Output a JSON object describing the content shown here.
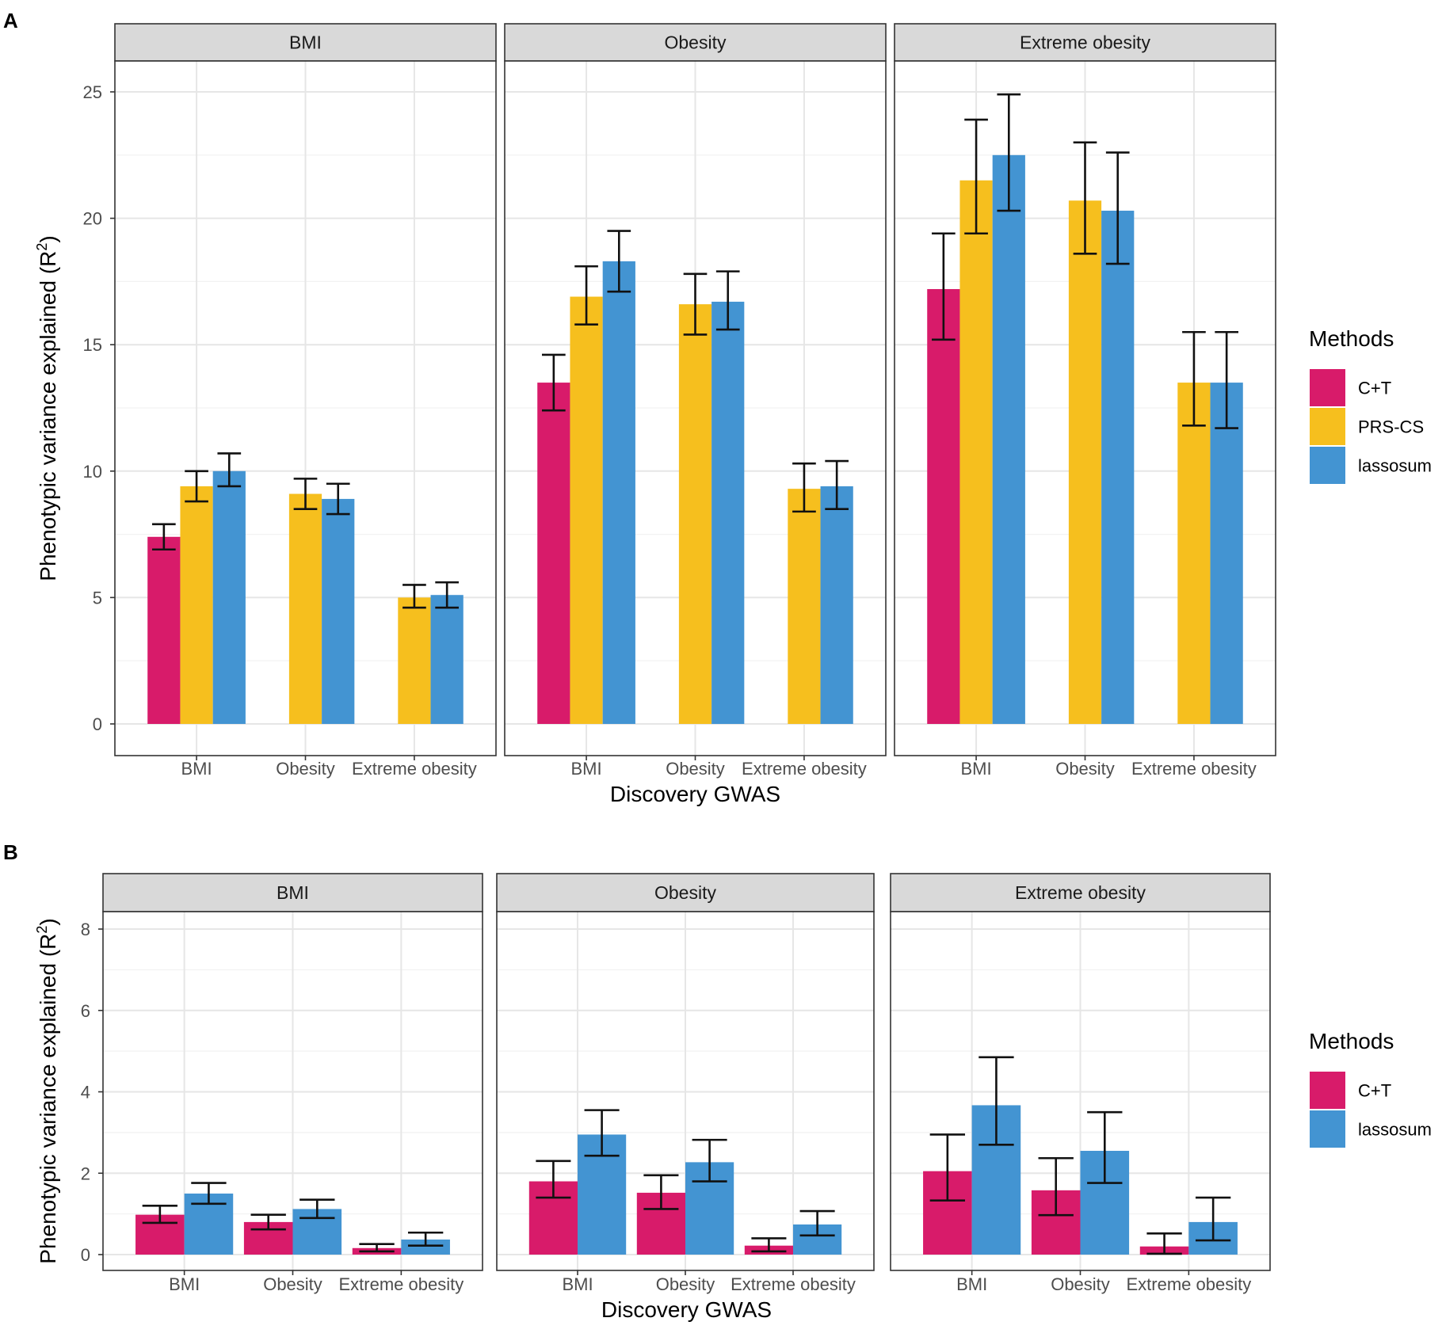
{
  "colors": {
    "C+T": "#d81b6a",
    "PRS-CS": "#f6bf1e",
    "lassosum": "#4394d2"
  },
  "chart_data": [
    {
      "panel": "A",
      "type": "bar",
      "xlabel": "Discovery GWAS",
      "ylabel_main": "Phenotypic variance explained (R",
      "ylabel_sup": "2",
      "ylabel_end": ")",
      "ylim": [
        0,
        26
      ],
      "yticks": [
        "0",
        "5",
        "10",
        "15",
        "20",
        "25"
      ],
      "legend_title": "Methods",
      "methods": [
        "C+T",
        "PRS-CS",
        "lassosum"
      ],
      "categories": [
        "BMI",
        "Obesity",
        "Extreme obesity"
      ],
      "facets": [
        {
          "title": "BMI",
          "groups": [
            {
              "category": "BMI",
              "bars": [
                {
                  "method": "C+T",
                  "value": 7.4,
                  "low": 6.9,
                  "high": 7.9
                },
                {
                  "method": "PRS-CS",
                  "value": 9.4,
                  "low": 8.8,
                  "high": 10.0
                },
                {
                  "method": "lassosum",
                  "value": 10.0,
                  "low": 9.4,
                  "high": 10.7
                }
              ]
            },
            {
              "category": "Obesity",
              "bars": [
                {
                  "method": "PRS-CS",
                  "value": 9.1,
                  "low": 8.5,
                  "high": 9.7
                },
                {
                  "method": "lassosum",
                  "value": 8.9,
                  "low": 8.3,
                  "high": 9.5
                }
              ]
            },
            {
              "category": "Extreme obesity",
              "bars": [
                {
                  "method": "PRS-CS",
                  "value": 5.0,
                  "low": 4.6,
                  "high": 5.5
                },
                {
                  "method": "lassosum",
                  "value": 5.1,
                  "low": 4.6,
                  "high": 5.6
                }
              ]
            }
          ]
        },
        {
          "title": "Obesity",
          "groups": [
            {
              "category": "BMI",
              "bars": [
                {
                  "method": "C+T",
                  "value": 13.5,
                  "low": 12.4,
                  "high": 14.6
                },
                {
                  "method": "PRS-CS",
                  "value": 16.9,
                  "low": 15.8,
                  "high": 18.1
                },
                {
                  "method": "lassosum",
                  "value": 18.3,
                  "low": 17.1,
                  "high": 19.5
                }
              ]
            },
            {
              "category": "Obesity",
              "bars": [
                {
                  "method": "PRS-CS",
                  "value": 16.6,
                  "low": 15.4,
                  "high": 17.8
                },
                {
                  "method": "lassosum",
                  "value": 16.7,
                  "low": 15.6,
                  "high": 17.9
                }
              ]
            },
            {
              "category": "Extreme obesity",
              "bars": [
                {
                  "method": "PRS-CS",
                  "value": 9.3,
                  "low": 8.4,
                  "high": 10.3
                },
                {
                  "method": "lassosum",
                  "value": 9.4,
                  "low": 8.5,
                  "high": 10.4
                }
              ]
            }
          ]
        },
        {
          "title": "Extreme obesity",
          "groups": [
            {
              "category": "BMI",
              "bars": [
                {
                  "method": "C+T",
                  "value": 17.2,
                  "low": 15.2,
                  "high": 19.4
                },
                {
                  "method": "PRS-CS",
                  "value": 21.5,
                  "low": 19.4,
                  "high": 23.9
                },
                {
                  "method": "lassosum",
                  "value": 22.5,
                  "low": 20.3,
                  "high": 24.9
                }
              ]
            },
            {
              "category": "Obesity",
              "bars": [
                {
                  "method": "PRS-CS",
                  "value": 20.7,
                  "low": 18.6,
                  "high": 23.0
                },
                {
                  "method": "lassosum",
                  "value": 20.3,
                  "low": 18.2,
                  "high": 22.6
                }
              ]
            },
            {
              "category": "Extreme obesity",
              "bars": [
                {
                  "method": "PRS-CS",
                  "value": 13.5,
                  "low": 11.8,
                  "high": 15.5
                },
                {
                  "method": "lassosum",
                  "value": 13.5,
                  "low": 11.7,
                  "high": 15.5
                }
              ]
            }
          ]
        }
      ]
    },
    {
      "panel": "B",
      "type": "bar",
      "xlabel": "Discovery GWAS",
      "ylabel_main": "Phenotypic variance explained (R",
      "ylabel_sup": "2",
      "ylabel_end": ")",
      "ylim": [
        0,
        8.5
      ],
      "yticks": [
        "0",
        "2",
        "4",
        "6",
        "8"
      ],
      "legend_title": "Methods",
      "methods": [
        "C+T",
        "lassosum"
      ],
      "categories": [
        "BMI",
        "Obesity",
        "Extreme obesity"
      ],
      "facets": [
        {
          "title": "BMI",
          "groups": [
            {
              "category": "BMI",
              "bars": [
                {
                  "method": "C+T",
                  "value": 0.98,
                  "low": 0.78,
                  "high": 1.2
                },
                {
                  "method": "lassosum",
                  "value": 1.5,
                  "low": 1.25,
                  "high": 1.76
                }
              ]
            },
            {
              "category": "Obesity",
              "bars": [
                {
                  "method": "C+T",
                  "value": 0.8,
                  "low": 0.62,
                  "high": 0.98
                },
                {
                  "method": "lassosum",
                  "value": 1.12,
                  "low": 0.9,
                  "high": 1.35
                }
              ]
            },
            {
              "category": "Extreme obesity",
              "bars": [
                {
                  "method": "C+T",
                  "value": 0.16,
                  "low": 0.08,
                  "high": 0.26
                },
                {
                  "method": "lassosum",
                  "value": 0.37,
                  "low": 0.22,
                  "high": 0.54
                }
              ]
            }
          ]
        },
        {
          "title": "Obesity",
          "groups": [
            {
              "category": "BMI",
              "bars": [
                {
                  "method": "C+T",
                  "value": 1.8,
                  "low": 1.4,
                  "high": 2.3
                },
                {
                  "method": "lassosum",
                  "value": 2.95,
                  "low": 2.43,
                  "high": 3.55
                }
              ]
            },
            {
              "category": "Obesity",
              "bars": [
                {
                  "method": "C+T",
                  "value": 1.52,
                  "low": 1.12,
                  "high": 1.95
                },
                {
                  "method": "lassosum",
                  "value": 2.27,
                  "low": 1.8,
                  "high": 2.82
                }
              ]
            },
            {
              "category": "Extreme obesity",
              "bars": [
                {
                  "method": "C+T",
                  "value": 0.22,
                  "low": 0.08,
                  "high": 0.4
                },
                {
                  "method": "lassosum",
                  "value": 0.74,
                  "low": 0.47,
                  "high": 1.07
                }
              ]
            }
          ]
        },
        {
          "title": "Extreme obesity",
          "groups": [
            {
              "category": "BMI",
              "bars": [
                {
                  "method": "C+T",
                  "value": 2.05,
                  "low": 1.33,
                  "high": 2.95
                },
                {
                  "method": "lassosum",
                  "value": 3.67,
                  "low": 2.7,
                  "high": 4.85
                }
              ]
            },
            {
              "category": "Obesity",
              "bars": [
                {
                  "method": "C+T",
                  "value": 1.58,
                  "low": 0.97,
                  "high": 2.37
                },
                {
                  "method": "lassosum",
                  "value": 2.55,
                  "low": 1.76,
                  "high": 3.5
                }
              ]
            },
            {
              "category": "Extreme obesity",
              "bars": [
                {
                  "method": "C+T",
                  "value": 0.2,
                  "low": 0.02,
                  "high": 0.52
                },
                {
                  "method": "lassosum",
                  "value": 0.8,
                  "low": 0.35,
                  "high": 1.4
                }
              ]
            }
          ]
        }
      ]
    }
  ]
}
